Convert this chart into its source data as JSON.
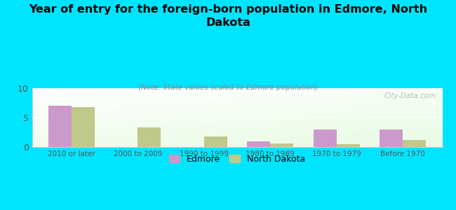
{
  "title": "Year of entry for the foreign-born population in Edmore, North\nDakota",
  "subtitle": "(Note: State values scaled to Edmore population)",
  "categories": [
    "2010 or later",
    "2000 to 2009",
    "1990 to 1999",
    "1980 to 1989",
    "1970 to 1979",
    "Before 1970"
  ],
  "edmore_values": [
    7.0,
    0.0,
    0.0,
    1.0,
    3.0,
    3.0
  ],
  "nd_values": [
    6.8,
    3.3,
    1.8,
    0.65,
    0.5,
    1.2
  ],
  "edmore_color": "#cc99cc",
  "nd_color": "#bec98a",
  "background_color": "#00e5ff",
  "ylim": [
    0,
    10
  ],
  "yticks": [
    0,
    5,
    10
  ],
  "bar_width": 0.35,
  "watermark": "City-Data.com",
  "legend_edmore": "Edmore",
  "legend_nd": "North Dakota"
}
